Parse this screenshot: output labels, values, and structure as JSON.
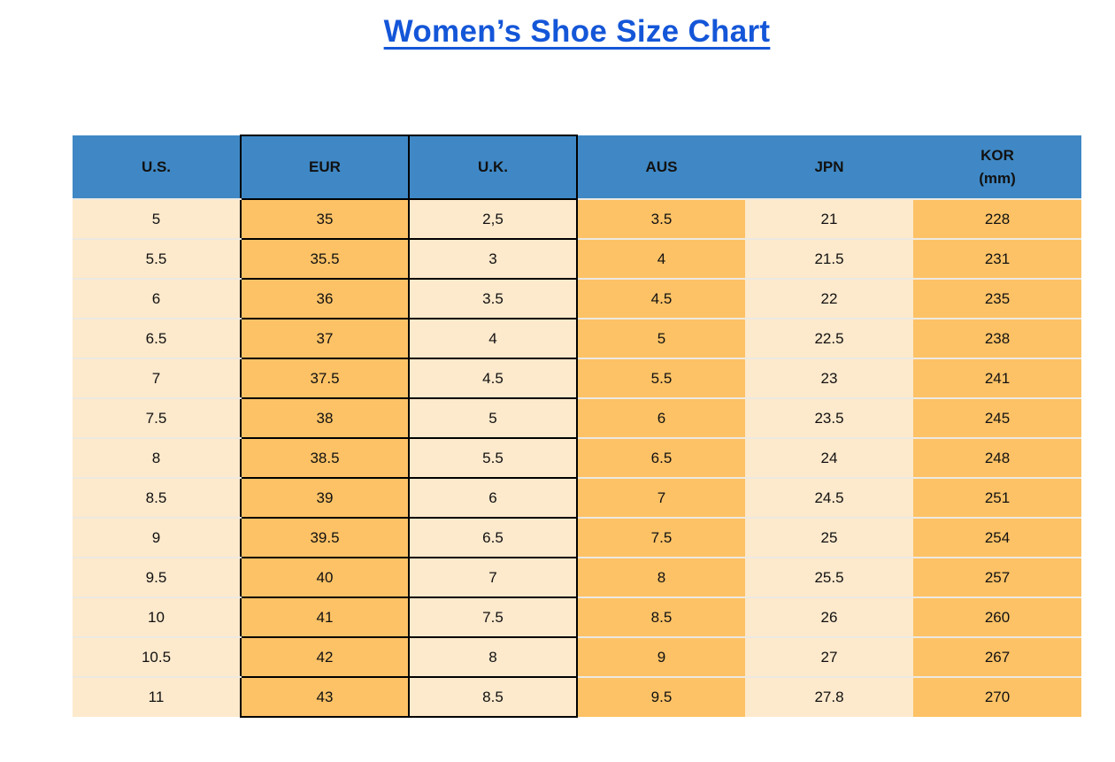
{
  "title": "Women’s Shoe Size Chart",
  "colors": {
    "title_blue": "#1456D8",
    "header_blue": "#3F88C5",
    "column_orange": "#FDC266",
    "column_cream": "#FDE9CC",
    "row_separator": "#ECE9E2",
    "cell_border_black": "#000000",
    "text": "#111111",
    "page_background": "#FFFFFF"
  },
  "chart_data": {
    "type": "table",
    "title": "Women’s Shoe Size Chart",
    "columns": [
      {
        "label": "U.S.",
        "fill": "cream",
        "black_border": false
      },
      {
        "label": "EUR",
        "fill": "orange",
        "black_border": true
      },
      {
        "label": "U.K.",
        "fill": "cream",
        "black_border": true
      },
      {
        "label": "AUS",
        "fill": "orange",
        "black_border": false
      },
      {
        "label": "JPN",
        "fill": "cream",
        "black_border": false
      },
      {
        "label": "KOR",
        "sublabel": "(mm)",
        "fill": "orange",
        "black_border": false
      }
    ],
    "rows": [
      [
        "5",
        "35",
        "2,5",
        "3.5",
        "21",
        "228"
      ],
      [
        "5.5",
        "35.5",
        "3",
        "4",
        "21.5",
        "231"
      ],
      [
        "6",
        "36",
        "3.5",
        "4.5",
        "22",
        "235"
      ],
      [
        "6.5",
        "37",
        "4",
        "5",
        "22.5",
        "238"
      ],
      [
        "7",
        "37.5",
        "4.5",
        "5.5",
        "23",
        "241"
      ],
      [
        "7.5",
        "38",
        "5",
        "6",
        "23.5",
        "245"
      ],
      [
        "8",
        "38.5",
        "5.5",
        "6.5",
        "24",
        "248"
      ],
      [
        "8.5",
        "39",
        "6",
        "7",
        "24.5",
        "251"
      ],
      [
        "9",
        "39.5",
        "6.5",
        "7.5",
        "25",
        "254"
      ],
      [
        "9.5",
        "40",
        "7",
        "8",
        "25.5",
        "257"
      ],
      [
        "10",
        "41",
        "7.5",
        "8.5",
        "26",
        "260"
      ],
      [
        "10.5",
        "42",
        "8",
        "9",
        "27",
        "267"
      ],
      [
        "11",
        "43",
        "8.5",
        "9.5",
        "27.8",
        "270"
      ]
    ]
  }
}
